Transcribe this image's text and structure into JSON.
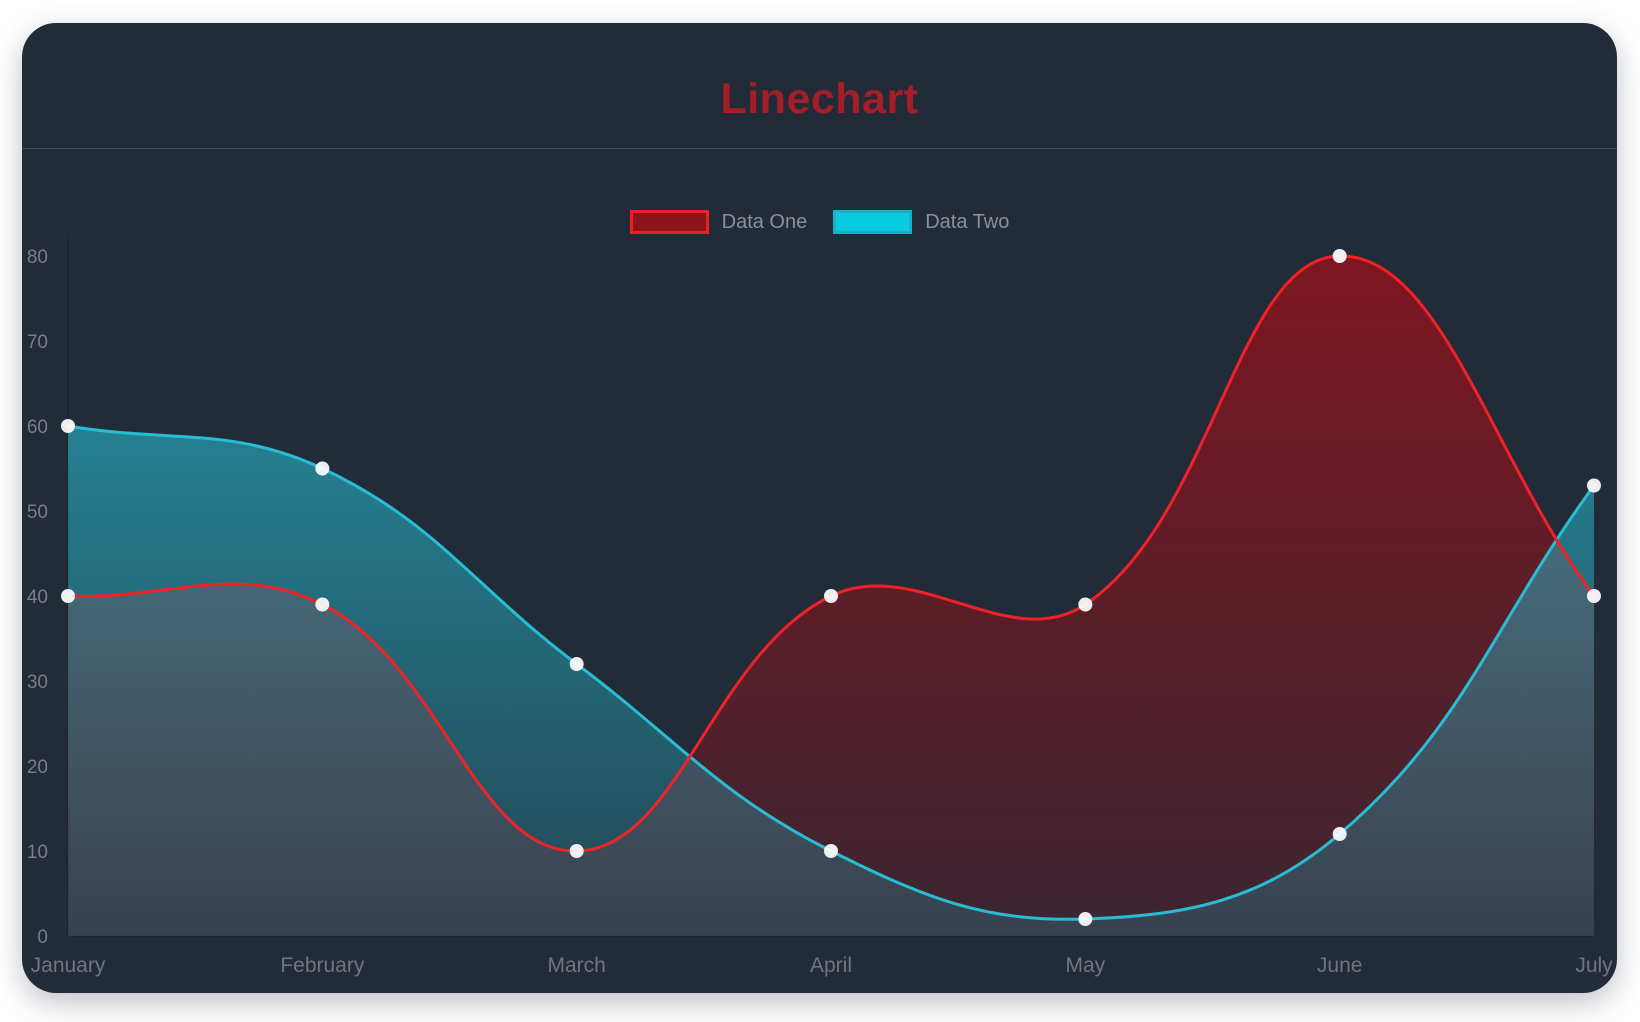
{
  "page": {
    "background": "#ffffff"
  },
  "card": {
    "background": "#222b38",
    "divider_color": "#3d4a63",
    "axis_line_color": "#1c2431"
  },
  "title": {
    "text": "Linechart",
    "color": "#a41e27"
  },
  "legend": {
    "position": "top",
    "text_color": "#8f8f96",
    "items": [
      {
        "label": "Data One",
        "swatch_fill": "#8c151b",
        "swatch_border": "#ef2025"
      },
      {
        "label": "Data Two",
        "swatch_fill": "#08cbe2",
        "swatch_border": "#14b3c8"
      }
    ]
  },
  "axes": {
    "y_tick_color": "#7d7d85",
    "x_tick_color": "#74747c",
    "grid": false
  },
  "chart_data": {
    "type": "line",
    "title": "Linechart",
    "categories": [
      "January",
      "February",
      "March",
      "April",
      "May",
      "June",
      "July"
    ],
    "series": [
      {
        "name": "Data One",
        "values": [
          40,
          39,
          10,
          40,
          39,
          80,
          40
        ],
        "line_color": "#ee2227",
        "area_color_rgb": "148,17,26",
        "area_alpha_top": 0.82,
        "area_alpha_bottom": 0.22
      },
      {
        "name": "Data Two",
        "values": [
          60,
          55,
          32,
          10,
          2,
          12,
          53
        ],
        "line_color": "#27bdd2",
        "area_color_rgb": "38,192,212",
        "area_alpha_top": 0.72,
        "area_alpha_bottom": 0.18
      }
    ],
    "xlabel": "",
    "ylabel": "",
    "ylim": [
      0,
      80
    ],
    "yticks": [
      0,
      10,
      20,
      30,
      40,
      50,
      60,
      70,
      80
    ],
    "curve_tension": 0.4,
    "fill_to": "zero",
    "legend_position": "top",
    "point_color": "#ffffff",
    "point_opacity": 0.92,
    "point_radius": 7
  }
}
